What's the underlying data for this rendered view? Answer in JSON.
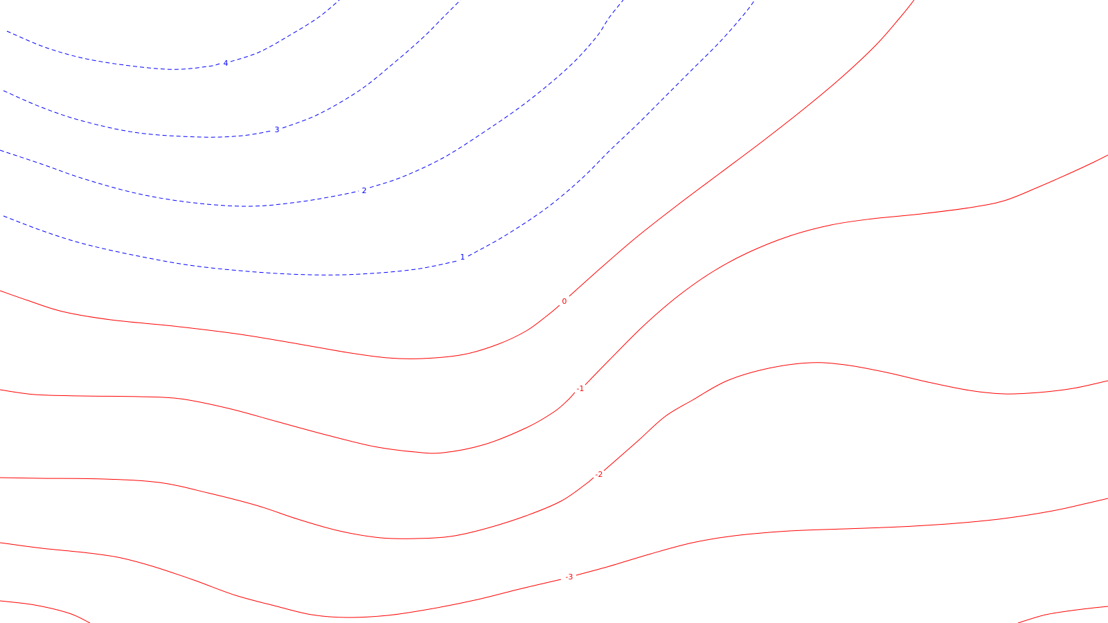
{
  "chart_data": {
    "type": "contour",
    "title": "",
    "xlabel": "",
    "ylabel": "",
    "grid": false,
    "legend": "none",
    "colors": {
      "positive": "#0000ff",
      "negative_or_zero": "#ff0000"
    },
    "styles": {
      "positive": "dashed",
      "negative_or_zero": "solid"
    },
    "levels": [
      {
        "level": 4,
        "label": "4",
        "color": "#0000ff",
        "dashed": true
      },
      {
        "level": 3,
        "label": "3",
        "color": "#0000ff",
        "dashed": true
      },
      {
        "level": 2,
        "label": "2",
        "color": "#0000ff",
        "dashed": true
      },
      {
        "level": 1,
        "label": "1",
        "color": "#0000ff",
        "dashed": true
      },
      {
        "level": 0,
        "label": "0",
        "color": "#ff0000",
        "dashed": false
      },
      {
        "level": -1,
        "label": "-1",
        "color": "#ff0000",
        "dashed": false
      },
      {
        "level": -2,
        "label": "-2",
        "color": "#ff0000",
        "dashed": false
      },
      {
        "level": -3,
        "label": "-3",
        "color": "#ff0000",
        "dashed": false
      },
      {
        "level": -4,
        "label": "",
        "color": "#ff0000",
        "dashed": false
      }
    ]
  }
}
